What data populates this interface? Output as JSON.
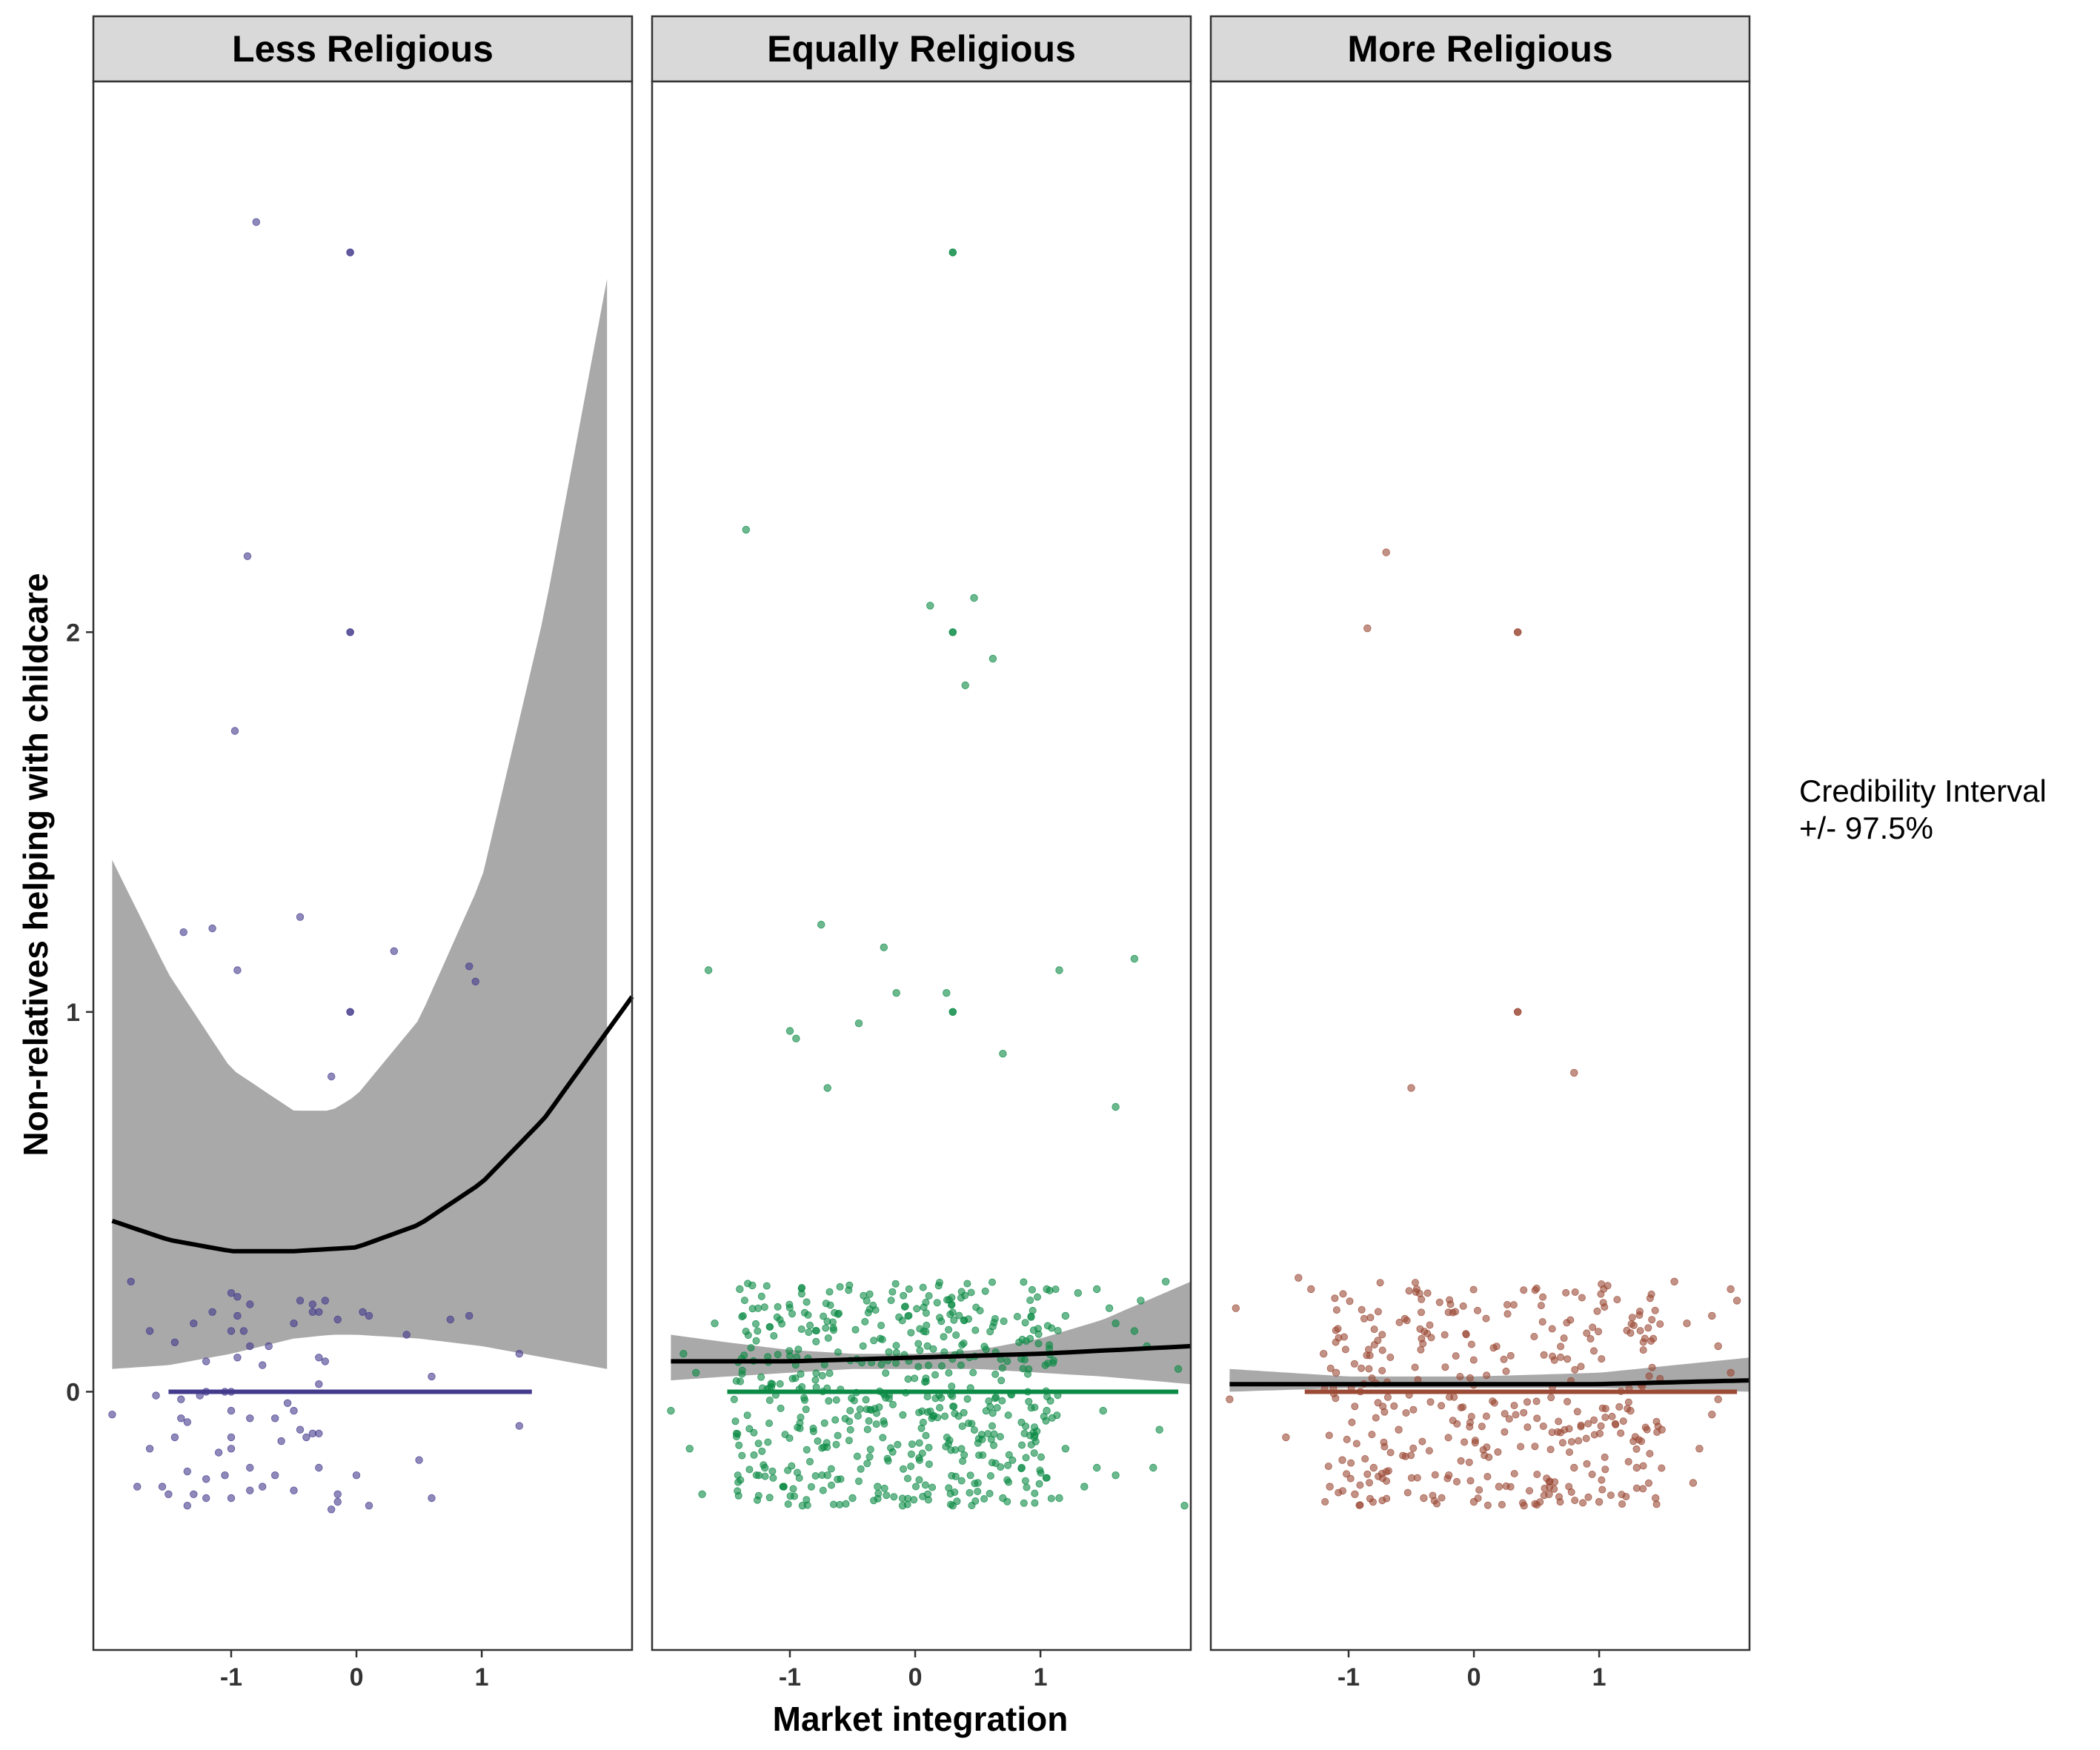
{
  "chart_data": {
    "type": "scatter",
    "xlabel": "Market integration",
    "ylabel": "Non-relatives helping with childcare",
    "xlim": [
      -2.1,
      2.2
    ],
    "ylim": [
      -0.68,
      3.45
    ],
    "x_ticks": [
      -1,
      0,
      1
    ],
    "x_tick_labels": [
      "-1",
      "0",
      "1"
    ],
    "y_ticks": [
      0,
      1,
      2
    ],
    "y_tick_labels": [
      "0",
      "1",
      "2"
    ],
    "grid": false,
    "legend": {
      "position": "right",
      "title_lines": [
        "Credibility Interval",
        "+/- 97.5%"
      ]
    },
    "panels": [
      {
        "title": "Less Religious",
        "color": "#433A8C",
        "mean_line": {
          "x": [
            -1.5,
            1.4
          ],
          "y": 0
        },
        "band": {
          "x": [
            -1.95,
            -1.5,
            -1.0,
            -0.5,
            -0.2,
            0.0,
            0.5,
            1.0,
            1.5,
            2.0
          ],
          "lower": [
            0.06,
            0.07,
            0.1,
            0.14,
            0.15,
            0.15,
            0.14,
            0.12,
            0.09,
            0.06
          ],
          "upper": [
            1.4,
            1.1,
            0.85,
            0.74,
            0.74,
            0.78,
            0.98,
            1.35,
            2.05,
            2.93
          ]
        },
        "fit": {
          "x": [
            -1.95,
            -1.5,
            -1.0,
            -0.5,
            0.0,
            0.5,
            1.0,
            1.5,
            2.2
          ],
          "y": [
            0.45,
            0.4,
            0.37,
            0.37,
            0.38,
            0.44,
            0.55,
            0.72,
            1.04
          ]
        },
        "points": [
          [
            -0.8,
            3.08
          ],
          [
            -0.05,
            3.0
          ],
          [
            -0.05,
            3.0
          ],
          [
            -0.87,
            2.2
          ],
          [
            -0.05,
            2.0
          ],
          [
            -0.05,
            2.0
          ],
          [
            -0.97,
            1.74
          ],
          [
            -1.38,
            1.21
          ],
          [
            -1.15,
            1.22
          ],
          [
            -0.45,
            1.25
          ],
          [
            -0.95,
            1.11
          ],
          [
            0.3,
            1.16
          ],
          [
            0.9,
            1.12
          ],
          [
            0.95,
            1.08
          ],
          [
            -0.05,
            1.0
          ],
          [
            -0.05,
            1.0
          ],
          [
            -0.2,
            0.83
          ],
          [
            -1.8,
            0.29
          ],
          [
            -1.0,
            0.26
          ],
          [
            -0.95,
            0.25
          ],
          [
            -0.85,
            0.23
          ],
          [
            -0.45,
            0.24
          ],
          [
            -0.35,
            0.23
          ],
          [
            -0.25,
            0.24
          ],
          [
            -0.35,
            0.21
          ],
          [
            -0.3,
            0.21
          ],
          [
            0.05,
            0.21
          ],
          [
            0.1,
            0.2
          ],
          [
            -0.15,
            0.19
          ],
          [
            -0.5,
            0.18
          ],
          [
            -1.3,
            0.18
          ],
          [
            -0.95,
            0.2
          ],
          [
            -1.15,
            0.21
          ],
          [
            0.75,
            0.19
          ],
          [
            0.9,
            0.2
          ],
          [
            -1.0,
            0.16
          ],
          [
            -1.65,
            0.16
          ],
          [
            -1.45,
            0.13
          ],
          [
            0.4,
            0.15
          ],
          [
            -0.9,
            0.16
          ],
          [
            -0.85,
            0.12
          ],
          [
            -0.7,
            0.12
          ],
          [
            -0.3,
            0.09
          ],
          [
            -1.2,
            0.08
          ],
          [
            -0.95,
            0.09
          ],
          [
            -0.75,
            0.07
          ],
          [
            -0.25,
            0.08
          ],
          [
            1.3,
            0.1
          ],
          [
            0.6,
            0.04
          ],
          [
            -1.0,
            0.0
          ],
          [
            -0.3,
            0.02
          ],
          [
            -1.2,
            0.0
          ],
          [
            -1.05,
            0.0
          ],
          [
            -1.25,
            -0.01
          ],
          [
            -1.6,
            -0.01
          ],
          [
            -1.4,
            -0.02
          ],
          [
            -0.55,
            -0.03
          ],
          [
            -0.5,
            -0.05
          ],
          [
            -0.85,
            -0.07
          ],
          [
            -1.95,
            -0.06
          ],
          [
            -1.0,
            -0.05
          ],
          [
            -1.0,
            -0.12
          ],
          [
            -0.45,
            -0.1
          ],
          [
            -0.35,
            -0.11
          ],
          [
            -0.3,
            -0.11
          ],
          [
            -0.65,
            -0.07
          ],
          [
            -0.4,
            -0.12
          ],
          [
            1.3,
            -0.09
          ],
          [
            -1.35,
            -0.08
          ],
          [
            -1.4,
            -0.07
          ],
          [
            -1.65,
            -0.15
          ],
          [
            -1.45,
            -0.12
          ],
          [
            -1.0,
            -0.15
          ],
          [
            -0.85,
            -0.2
          ],
          [
            -0.75,
            -0.25
          ],
          [
            -0.65,
            -0.22
          ],
          [
            -1.35,
            -0.21
          ],
          [
            -1.05,
            -0.22
          ],
          [
            -0.3,
            -0.2
          ],
          [
            0.5,
            -0.18
          ],
          [
            -1.75,
            -0.25
          ],
          [
            -1.2,
            -0.23
          ],
          [
            -1.5,
            -0.27
          ],
          [
            -1.0,
            -0.28
          ],
          [
            -1.35,
            -0.3
          ],
          [
            -1.2,
            -0.28
          ],
          [
            -1.3,
            -0.27
          ],
          [
            -0.85,
            -0.26
          ],
          [
            -0.5,
            -0.26
          ],
          [
            -0.15,
            -0.29
          ],
          [
            0.1,
            -0.3
          ],
          [
            0.6,
            -0.28
          ],
          [
            -0.2,
            -0.31
          ],
          [
            -1.55,
            -0.25
          ],
          [
            0.0,
            -0.22
          ],
          [
            -0.15,
            -0.27
          ],
          [
            -1.1,
            -0.16
          ],
          [
            -0.6,
            -0.13
          ]
        ]
      },
      {
        "title": "Equally Religious",
        "color": "#0B8A45",
        "mean_line": {
          "x": [
            -1.5,
            2.1
          ],
          "y": 0
        },
        "band": {
          "x": [
            -1.95,
            -1.5,
            -1.0,
            -0.5,
            0.0,
            0.5,
            1.0,
            1.5,
            2.2
          ],
          "lower": [
            0.03,
            0.04,
            0.05,
            0.06,
            0.06,
            0.06,
            0.05,
            0.04,
            0.02
          ],
          "upper": [
            0.15,
            0.13,
            0.11,
            0.1,
            0.1,
            0.11,
            0.14,
            0.19,
            0.29
          ]
        },
        "fit": {
          "x": [
            -1.95,
            -1.0,
            0.0,
            1.0,
            2.2
          ],
          "y": [
            0.08,
            0.08,
            0.09,
            0.1,
            0.12
          ]
        },
        "points": [
          [
            0.3,
            3.0
          ],
          [
            0.3,
            3.0
          ],
          [
            -1.35,
            2.27
          ],
          [
            0.12,
            2.07
          ],
          [
            0.47,
            2.09
          ],
          [
            0.3,
            2.0
          ],
          [
            0.3,
            2.0
          ],
          [
            0.62,
            1.93
          ],
          [
            0.4,
            1.86
          ],
          [
            -0.75,
            1.23
          ],
          [
            -0.25,
            1.17
          ],
          [
            1.75,
            1.14
          ],
          [
            -1.65,
            1.11
          ],
          [
            1.15,
            1.11
          ],
          [
            -0.15,
            1.05
          ],
          [
            0.25,
            1.05
          ],
          [
            0.3,
            1.0
          ],
          [
            0.3,
            1.0
          ],
          [
            -1.0,
            0.95
          ],
          [
            -0.95,
            0.93
          ],
          [
            -0.45,
            0.97
          ],
          [
            0.7,
            0.89
          ],
          [
            -0.7,
            0.8
          ],
          [
            1.6,
            0.75
          ],
          [
            2.0,
            0.29
          ],
          [
            1.45,
            0.27
          ],
          [
            1.8,
            0.24
          ],
          [
            -1.4,
            0.27
          ],
          [
            -1.3,
            0.28
          ],
          [
            1.05,
            0.27
          ],
          [
            1.3,
            0.26
          ],
          [
            1.55,
            0.22
          ],
          [
            1.2,
            0.2
          ],
          [
            1.6,
            0.18
          ],
          [
            1.75,
            0.16
          ],
          [
            1.85,
            0.12
          ],
          [
            2.1,
            0.06
          ],
          [
            -1.6,
            0.18
          ],
          [
            -1.85,
            0.1
          ],
          [
            -1.75,
            0.05
          ],
          [
            -1.95,
            -0.05
          ],
          [
            -1.8,
            -0.15
          ],
          [
            -1.7,
            -0.27
          ],
          [
            2.15,
            -0.3
          ],
          [
            1.9,
            -0.2
          ],
          [
            1.95,
            -0.1
          ],
          [
            1.6,
            -0.22
          ],
          [
            1.5,
            -0.05
          ],
          [
            1.45,
            -0.2
          ],
          [
            1.35,
            -0.25
          ],
          [
            1.2,
            -0.15
          ],
          [
            1.15,
            -0.28
          ],
          [
            1.05,
            -0.05
          ],
          [
            0.95,
            -0.12
          ],
          [
            -1.2,
            -0.2
          ],
          [
            -1.05,
            -0.25
          ],
          [
            -0.9,
            -0.3
          ],
          [
            -0.7,
            -0.22
          ],
          [
            -0.5,
            -0.28
          ],
          [
            -0.3,
            -0.25
          ],
          [
            -0.1,
            -0.3
          ],
          [
            0.1,
            -0.27
          ],
          [
            0.3,
            -0.3
          ],
          [
            0.5,
            -0.24
          ],
          [
            0.7,
            -0.28
          ],
          [
            0.85,
            -0.2
          ]
        ],
        "dense_cluster": {
          "x_range": [
            -1.45,
            1.15
          ],
          "y_range": [
            -0.3,
            0.29
          ],
          "count": 520
        }
      },
      {
        "title": "More Religious",
        "color": "#9B4A36",
        "mean_line": {
          "x": [
            -1.35,
            2.1
          ],
          "y": 0
        },
        "band": {
          "x": [
            -1.95,
            -1.0,
            0.0,
            1.0,
            2.2
          ],
          "lower": [
            0.0,
            0.01,
            0.01,
            0.01,
            0.0
          ],
          "upper": [
            0.06,
            0.04,
            0.04,
            0.05,
            0.09
          ]
        },
        "fit": {
          "x": [
            -1.95,
            -1.0,
            0.0,
            1.0,
            2.2
          ],
          "y": [
            0.02,
            0.02,
            0.02,
            0.02,
            0.03
          ]
        },
        "points": [
          [
            -0.7,
            2.21
          ],
          [
            -0.85,
            2.01
          ],
          [
            0.35,
            2.0
          ],
          [
            0.35,
            2.0
          ],
          [
            0.35,
            1.0
          ],
          [
            0.35,
            1.0
          ],
          [
            -0.5,
            0.8
          ],
          [
            0.8,
            0.84
          ],
          [
            -1.9,
            0.22
          ],
          [
            -1.4,
            0.3
          ],
          [
            -1.3,
            0.27
          ],
          [
            -1.95,
            -0.02
          ],
          [
            -1.5,
            -0.12
          ],
          [
            2.1,
            0.24
          ],
          [
            2.05,
            0.27
          ],
          [
            1.9,
            0.2
          ],
          [
            1.6,
            0.29
          ],
          [
            1.7,
            0.18
          ],
          [
            1.95,
            0.12
          ],
          [
            2.05,
            0.05
          ],
          [
            1.95,
            -0.02
          ],
          [
            1.9,
            -0.06
          ],
          [
            1.8,
            -0.15
          ],
          [
            1.75,
            -0.24
          ],
          [
            1.45,
            -0.28
          ],
          [
            1.5,
            -0.1
          ],
          [
            1.3,
            -0.2
          ],
          [
            1.25,
            -0.05
          ],
          [
            -1.15,
            -0.25
          ],
          [
            -1.05,
            -0.18
          ],
          [
            -0.95,
            -0.27
          ],
          [
            -0.8,
            -0.2
          ],
          [
            -0.6,
            -0.1
          ],
          [
            -0.4,
            -0.28
          ],
          [
            -0.2,
            -0.22
          ],
          [
            0.0,
            -0.29
          ],
          [
            0.2,
            -0.25
          ],
          [
            0.4,
            -0.3
          ],
          [
            0.6,
            -0.27
          ],
          [
            0.8,
            -0.2
          ],
          [
            1.0,
            -0.29
          ],
          [
            -1.2,
            0.1
          ],
          [
            -1.1,
            0.05
          ]
        ],
        "dense_cluster": {
          "x_range": [
            -1.2,
            1.5
          ],
          "y_range": [
            -0.3,
            0.29
          ],
          "count": 340
        }
      }
    ]
  }
}
